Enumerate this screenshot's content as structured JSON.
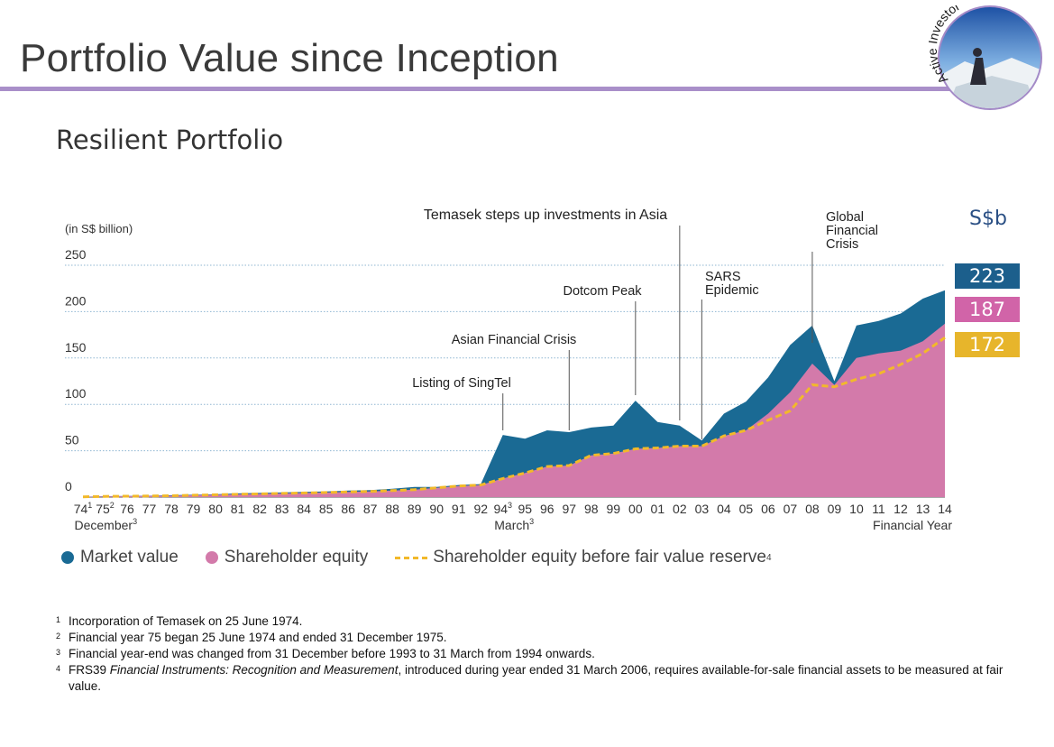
{
  "page": {
    "title": "Portfolio Value since Inception",
    "subtitle": "Resilient Portfolio",
    "logo_text": "Active Investor"
  },
  "unit_label": "S$b",
  "end_values": [
    {
      "label": "223",
      "color": "#1c5f8c"
    },
    {
      "label": "187",
      "color": "#d164a8"
    },
    {
      "label": "172",
      "color": "#e7b52b"
    }
  ],
  "legend": {
    "market_value": "Market value",
    "shareholder_equity": "Shareholder equity",
    "equity_before_fvr": "Shareholder equity before fair value reserve",
    "equity_before_fvr_sup": "4"
  },
  "footnotes": [
    {
      "num": "1",
      "text": "Incorporation of Temasek on 25 June 1974."
    },
    {
      "num": "2",
      "text": "Financial year 75 began 25 June 1974 and ended 31 December 1975."
    },
    {
      "num": "3",
      "text": "Financial year-end was changed from 31 December before 1993 to 31 March from 1994 onwards."
    },
    {
      "num": "4",
      "text_pre": "FRS39 ",
      "text_italic": "Financial Instruments: Recognition and Measurement",
      "text_post": ", introduced during year ended 31 March 2006, requires available-for-sale financial assets to be measured at fair value."
    }
  ],
  "chart_data": {
    "type": "area",
    "ylabel": "(in S$ billion)",
    "ylim": [
      0,
      250
    ],
    "yticks": [
      0,
      50,
      100,
      150,
      200,
      250
    ],
    "grid": true,
    "categories": [
      "74",
      "75",
      "76",
      "77",
      "78",
      "79",
      "80",
      "81",
      "82",
      "83",
      "84",
      "85",
      "86",
      "87",
      "88",
      "89",
      "90",
      "91",
      "92",
      "94",
      "95",
      "96",
      "97",
      "98",
      "99",
      "00",
      "01",
      "02",
      "03",
      "04",
      "05",
      "06",
      "07",
      "08",
      "09",
      "10",
      "11",
      "12",
      "13",
      "14"
    ],
    "category_superscripts": {
      "74": "1",
      "75": "2",
      "94": "3"
    },
    "x_notes": [
      {
        "at": "75",
        "text": "December",
        "sup": "3"
      },
      {
        "at": "95",
        "text": "March",
        "sup": "3"
      },
      {
        "at": "14",
        "text": "Financial Year"
      }
    ],
    "series": [
      {
        "name": "Market value",
        "color": "#1a6a94",
        "values": [
          0.4,
          1,
          1.2,
          1.5,
          2,
          2.5,
          3,
          4,
          4.5,
          5,
          5.5,
          6,
          7,
          7.5,
          9,
          11,
          11,
          13,
          14,
          67,
          63,
          72,
          70,
          75,
          77,
          104,
          81,
          77,
          61,
          90,
          103,
          129,
          164,
          185,
          125,
          185,
          190,
          198,
          214,
          223
        ]
      },
      {
        "name": "Shareholder equity",
        "color": "#d37aaa",
        "values": [
          0.3,
          0.8,
          1,
          1.2,
          1.5,
          2,
          2.5,
          3,
          3.5,
          4,
          4.5,
          5,
          5.5,
          6,
          7,
          8,
          10,
          12,
          13,
          20,
          26,
          33,
          34,
          45,
          47,
          52,
          53,
          55,
          55,
          66,
          72,
          90,
          113,
          144,
          121,
          150,
          155,
          158,
          168,
          187
        ]
      },
      {
        "name": "Shareholder equity before fair value reserve",
        "color": "#f2b92a",
        "values": [
          0.3,
          0.8,
          1,
          1.2,
          1.5,
          2,
          2.5,
          3,
          3.5,
          4,
          4.5,
          5,
          5.5,
          6,
          7,
          8,
          10,
          12,
          13,
          20,
          26,
          33,
          34,
          45,
          47,
          52,
          53,
          55,
          55,
          66,
          72,
          83,
          93,
          121,
          119,
          127,
          133,
          143,
          155,
          172
        ]
      }
    ],
    "annotations": [
      {
        "text": "Listing of SingTel",
        "x": "94"
      },
      {
        "text": "Asian Financial Crisis",
        "x": "97"
      },
      {
        "text": "Dotcom Peak",
        "x": "00"
      },
      {
        "text": "Temasek steps up investments in Asia",
        "x": "02"
      },
      {
        "text": "SARS Epidemic",
        "x": "03"
      },
      {
        "text": "Global Financial Crisis",
        "x": "08"
      }
    ]
  }
}
